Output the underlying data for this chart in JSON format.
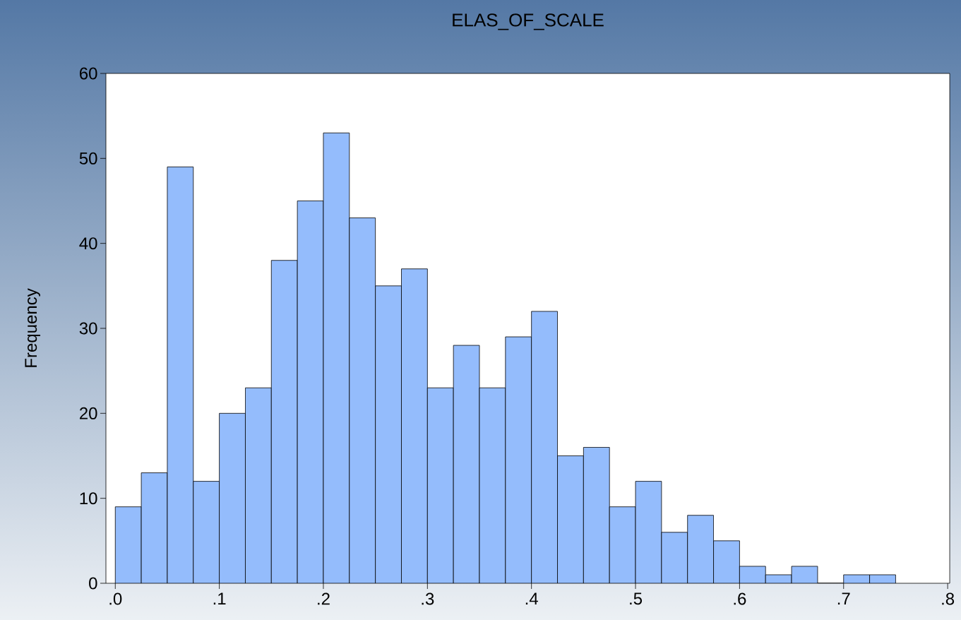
{
  "chart_data": {
    "type": "histogram",
    "title": "ELAS_OF_SCALE",
    "ylabel": "Frequency",
    "bins": [
      0,
      0.025,
      0.05,
      0.075,
      0.1,
      0.125,
      0.15,
      0.175,
      0.2,
      0.225,
      0.25,
      0.275,
      0.3,
      0.325,
      0.35,
      0.375,
      0.4,
      0.425,
      0.45,
      0.475,
      0.5,
      0.525,
      0.55,
      0.575,
      0.6,
      0.625,
      0.65,
      0.675,
      0.7,
      0.725,
      0.75
    ],
    "values": [
      9,
      13,
      49,
      12,
      20,
      23,
      38,
      45,
      53,
      43,
      35,
      37,
      23,
      28,
      23,
      29,
      32,
      15,
      16,
      9,
      12,
      6,
      8,
      5,
      2,
      1,
      2,
      0,
      1,
      1
    ],
    "color": "#94bcfc",
    "xlim": [
      -0.009,
      0.802
    ],
    "ylim": [
      0,
      60
    ],
    "xticks": [
      {
        "value": 0,
        "label": ".0"
      },
      {
        "value": 0.1,
        "label": ".1"
      },
      {
        "value": 0.2,
        "label": ".2"
      },
      {
        "value": 0.3,
        "label": ".3"
      },
      {
        "value": 0.4,
        "label": ".4"
      },
      {
        "value": 0.5,
        "label": ".5"
      },
      {
        "value": 0.6,
        "label": ".6"
      },
      {
        "value": 0.7,
        "label": ".7"
      },
      {
        "value": 0.8,
        "label": ".8"
      }
    ],
    "yticks": [
      0,
      10,
      20,
      30,
      40,
      50,
      60
    ]
  }
}
